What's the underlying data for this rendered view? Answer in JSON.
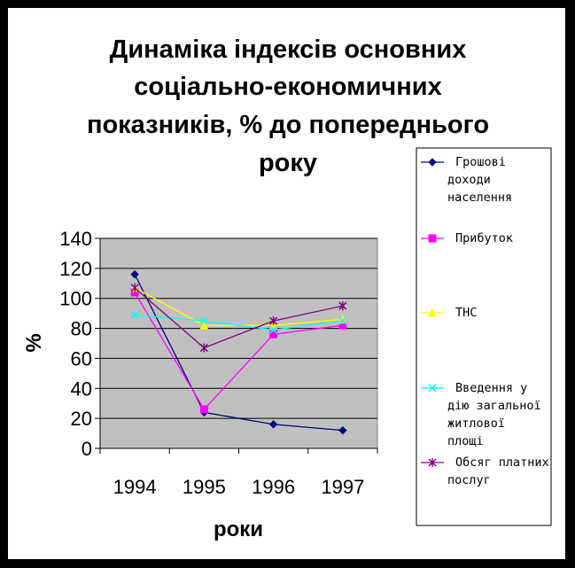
{
  "chart_data": {
    "type": "line",
    "title_lines": [
      "Динаміка індексів основних",
      "соціально-економичних",
      "показників, % до попереднього",
      "року"
    ],
    "xlabel": "роки",
    "ylabel": "%",
    "categories": [
      "1994",
      "1995",
      "1996",
      "1997"
    ],
    "ylim": [
      0,
      140
    ],
    "yticks": [
      "0",
      "20",
      "40",
      "60",
      "80",
      "100",
      "120",
      "140"
    ],
    "grid": true,
    "legend_position": "right",
    "series": [
      {
        "name_lines": [
          "Грошові",
          "доходи",
          "населення"
        ],
        "values": [
          116,
          24,
          16,
          12
        ],
        "color": "#000080",
        "marker": "diamond"
      },
      {
        "name_lines": [
          "Прибуток"
        ],
        "values": [
          104,
          26,
          76,
          82
        ],
        "color": "#ff00ff",
        "marker": "square"
      },
      {
        "name_lines": [
          "ТНС"
        ],
        "values": [
          107,
          82,
          82,
          86
        ],
        "color": "#ffff00",
        "marker": "triangle"
      },
      {
        "name_lines": [
          "Введення у",
          "дію загальної",
          "житлової",
          "площі"
        ],
        "values": [
          89,
          85,
          79,
          85
        ],
        "color": "#00ffff",
        "marker": "x"
      },
      {
        "name_lines": [
          "Обсяг платних",
          "послуг"
        ],
        "values": [
          107,
          67,
          85,
          95
        ],
        "color": "#800080",
        "marker": "star"
      }
    ]
  }
}
